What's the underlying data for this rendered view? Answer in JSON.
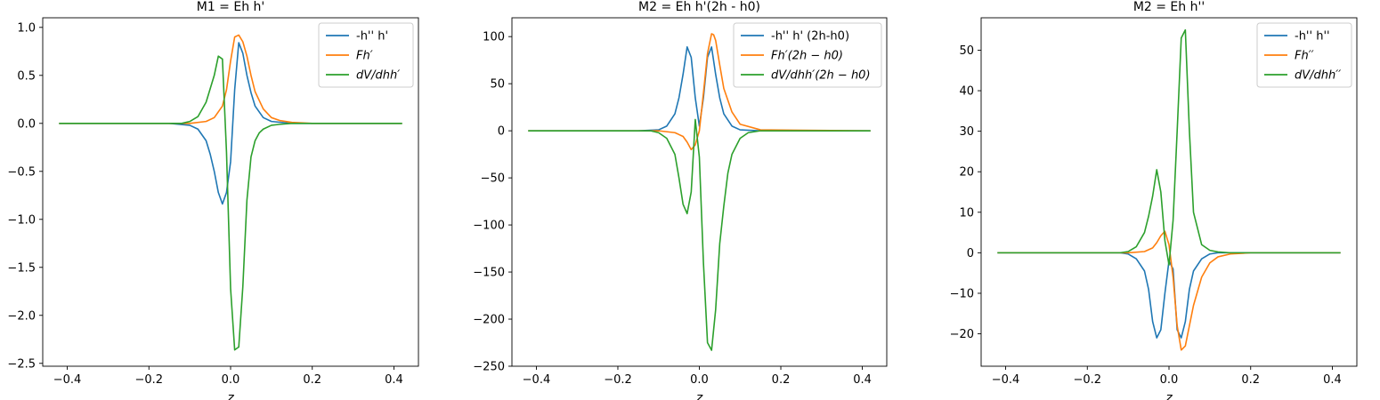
{
  "chart_data": [
    {
      "type": "line",
      "title": "M1 = Eh h'",
      "xlabel": "z",
      "ylabel": "",
      "xlim": [
        -0.46,
        0.46
      ],
      "ylim": [
        -2.53,
        1.1
      ],
      "xticks": [
        -0.4,
        -0.2,
        0.0,
        0.2,
        0.4
      ],
      "xtick_labels": [
        "−0.4",
        "−0.2",
        "0.0",
        "0.2",
        "0.4"
      ],
      "yticks": [
        -2.5,
        -2.0,
        -1.5,
        -1.0,
        -0.5,
        0.0,
        0.5,
        1.0
      ],
      "ytick_labels": [
        "−2.5",
        "−2.0",
        "−1.5",
        "−1.0",
        "−0.5",
        "0.0",
        "0.5",
        "1.0"
      ],
      "grid": false,
      "legend_position": "top-right",
      "series": [
        {
          "name": "-h'' h'",
          "color": "#1f77b4",
          "x": [
            -0.42,
            -0.15,
            -0.1,
            -0.08,
            -0.06,
            -0.05,
            -0.04,
            -0.03,
            -0.02,
            -0.01,
            0.0,
            0.01,
            0.02,
            0.03,
            0.04,
            0.05,
            0.06,
            0.08,
            0.1,
            0.15,
            0.42
          ],
          "y": [
            0,
            0,
            -0.02,
            -0.06,
            -0.18,
            -0.32,
            -0.5,
            -0.72,
            -0.84,
            -0.72,
            -0.4,
            0.35,
            0.84,
            0.73,
            0.5,
            0.32,
            0.18,
            0.06,
            0.02,
            0,
            0
          ]
        },
        {
          "name": "Fh′",
          "color": "#ff7f0e",
          "x": [
            -0.42,
            -0.1,
            -0.06,
            -0.04,
            -0.02,
            -0.01,
            0.0,
            0.01,
            0.02,
            0.03,
            0.04,
            0.05,
            0.06,
            0.08,
            0.1,
            0.12,
            0.15,
            0.2,
            0.42
          ],
          "y": [
            0,
            0,
            0.02,
            0.06,
            0.18,
            0.35,
            0.65,
            0.9,
            0.92,
            0.85,
            0.7,
            0.5,
            0.33,
            0.15,
            0.06,
            0.03,
            0.01,
            0,
            0
          ]
        },
        {
          "name": "dV/dhh′",
          "color": "#2ca02c",
          "x": [
            -0.42,
            -0.12,
            -0.1,
            -0.08,
            -0.06,
            -0.05,
            -0.04,
            -0.03,
            -0.02,
            -0.01,
            0.0,
            0.01,
            0.02,
            0.03,
            0.04,
            0.05,
            0.06,
            0.07,
            0.08,
            0.1,
            0.12,
            0.15,
            0.42
          ],
          "y": [
            0,
            0,
            0.02,
            0.07,
            0.22,
            0.36,
            0.5,
            0.7,
            0.67,
            -0.3,
            -1.72,
            -2.36,
            -2.33,
            -1.7,
            -0.8,
            -0.35,
            -0.18,
            -0.1,
            -0.06,
            -0.02,
            -0.01,
            0,
            0
          ]
        }
      ]
    },
    {
      "type": "line",
      "title": "M2 = Eh h'(2h - h0)",
      "xlabel": "z",
      "ylabel": "",
      "xlim": [
        -0.46,
        0.46
      ],
      "ylim": [
        -250,
        120
      ],
      "xticks": [
        -0.4,
        -0.2,
        0.0,
        0.2,
        0.4
      ],
      "xtick_labels": [
        "−0.4",
        "−0.2",
        "0.0",
        "0.2",
        "0.4"
      ],
      "yticks": [
        -250,
        -200,
        -150,
        -100,
        -50,
        0,
        50,
        100
      ],
      "ytick_labels": [
        "−250",
        "−200",
        "−150",
        "−100",
        "−50",
        "0",
        "50",
        "100"
      ],
      "grid": false,
      "legend_position": "top-right",
      "series": [
        {
          "name": "-h'' h' (2h-h0)",
          "color": "#1f77b4",
          "x": [
            -0.42,
            -0.15,
            -0.1,
            -0.08,
            -0.06,
            -0.05,
            -0.04,
            -0.03,
            -0.02,
            -0.01,
            0.0,
            0.01,
            0.02,
            0.03,
            0.04,
            0.05,
            0.06,
            0.08,
            0.1,
            0.15,
            0.42
          ],
          "y": [
            0,
            0,
            1,
            5,
            18,
            35,
            60,
            89,
            78,
            35,
            5,
            35,
            78,
            89,
            60,
            35,
            18,
            5,
            1,
            0,
            0
          ]
        },
        {
          "name": "Fh′(2h − h0)",
          "color": "#ff7f0e",
          "x": [
            -0.42,
            -0.1,
            -0.06,
            -0.04,
            -0.03,
            -0.02,
            -0.01,
            0.0,
            0.01,
            0.02,
            0.03,
            0.035,
            0.04,
            0.05,
            0.06,
            0.08,
            0.1,
            0.15,
            0.42
          ],
          "y": [
            0,
            0,
            -2,
            -6,
            -12,
            -20,
            -15,
            0,
            40,
            82,
            103,
            102,
            96,
            70,
            45,
            20,
            7,
            1,
            0
          ]
        },
        {
          "name": "dV/dhh′(2h − h0)",
          "color": "#2ca02c",
          "x": [
            -0.42,
            -0.12,
            -0.1,
            -0.08,
            -0.06,
            -0.05,
            -0.04,
            -0.03,
            -0.02,
            -0.01,
            0.0,
            0.01,
            0.02,
            0.03,
            0.04,
            0.05,
            0.06,
            0.07,
            0.08,
            0.1,
            0.12,
            0.15,
            0.42
          ],
          "y": [
            0,
            0,
            -2,
            -8,
            -25,
            -50,
            -78,
            -88,
            -65,
            12,
            -28,
            -140,
            -225,
            -233,
            -190,
            -120,
            -80,
            -45,
            -25,
            -8,
            -2,
            0,
            0
          ]
        }
      ]
    },
    {
      "type": "line",
      "title": "M2 = Eh h''",
      "xlabel": "z",
      "ylabel": "",
      "xlim": [
        -0.46,
        0.46
      ],
      "ylim": [
        -28,
        58
      ],
      "xticks": [
        -0.4,
        -0.2,
        0.0,
        0.2,
        0.4
      ],
      "xtick_labels": [
        "−0.4",
        "−0.2",
        "0.0",
        "0.2",
        "0.4"
      ],
      "yticks": [
        -20,
        -10,
        0,
        10,
        20,
        30,
        40,
        50
      ],
      "ytick_labels": [
        "−20",
        "−10",
        "0",
        "10",
        "20",
        "30",
        "40",
        "50"
      ],
      "grid": false,
      "legend_position": "top-right",
      "series": [
        {
          "name": "-h'' h''",
          "color": "#1f77b4",
          "x": [
            -0.42,
            -0.12,
            -0.1,
            -0.08,
            -0.06,
            -0.05,
            -0.04,
            -0.03,
            -0.02,
            -0.01,
            0.0,
            0.01,
            0.02,
            0.03,
            0.04,
            0.05,
            0.06,
            0.08,
            0.1,
            0.12,
            0.42
          ],
          "y": [
            0,
            0,
            -0.3,
            -1.5,
            -4.5,
            -9,
            -17,
            -21,
            -19,
            -10,
            -2,
            -4,
            -19,
            -21,
            -17,
            -9,
            -4.5,
            -1.5,
            -0.3,
            0,
            0
          ]
        },
        {
          "name": "Fh′′",
          "color": "#ff7f0e",
          "x": [
            -0.42,
            -0.1,
            -0.06,
            -0.04,
            -0.03,
            -0.02,
            -0.01,
            0.0,
            0.01,
            0.02,
            0.03,
            0.04,
            0.05,
            0.06,
            0.08,
            0.1,
            0.12,
            0.15,
            0.2,
            0.42
          ],
          "y": [
            0,
            0,
            0.3,
            1.2,
            2.5,
            4.2,
            5.3,
            2,
            -6,
            -18,
            -24,
            -23,
            -18,
            -13,
            -6,
            -2.5,
            -1,
            -0.3,
            0,
            0
          ]
        },
        {
          "name": "dV/dhh′′",
          "color": "#2ca02c",
          "x": [
            -0.42,
            -0.12,
            -0.1,
            -0.08,
            -0.06,
            -0.05,
            -0.04,
            -0.03,
            -0.02,
            -0.01,
            0.0,
            0.01,
            0.02,
            0.03,
            0.04,
            0.05,
            0.06,
            0.08,
            0.1,
            0.12,
            0.15,
            0.42
          ],
          "y": [
            0,
            0,
            0.3,
            1.5,
            5,
            9,
            14,
            20.5,
            15,
            3,
            -3,
            8,
            30,
            53,
            55,
            30,
            10,
            2,
            0.6,
            0.2,
            0,
            0
          ]
        }
      ]
    }
  ]
}
